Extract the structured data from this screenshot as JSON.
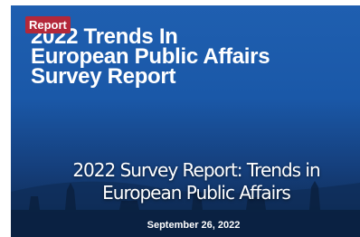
{
  "card": {
    "badge": "Report",
    "image_text": [
      "2022 Trends In",
      "European Public Affairs",
      "Survey Report"
    ],
    "title": [
      "2022 Survey Report: Trends in",
      "European Public Affairs"
    ],
    "date": "September 26, 2022"
  }
}
